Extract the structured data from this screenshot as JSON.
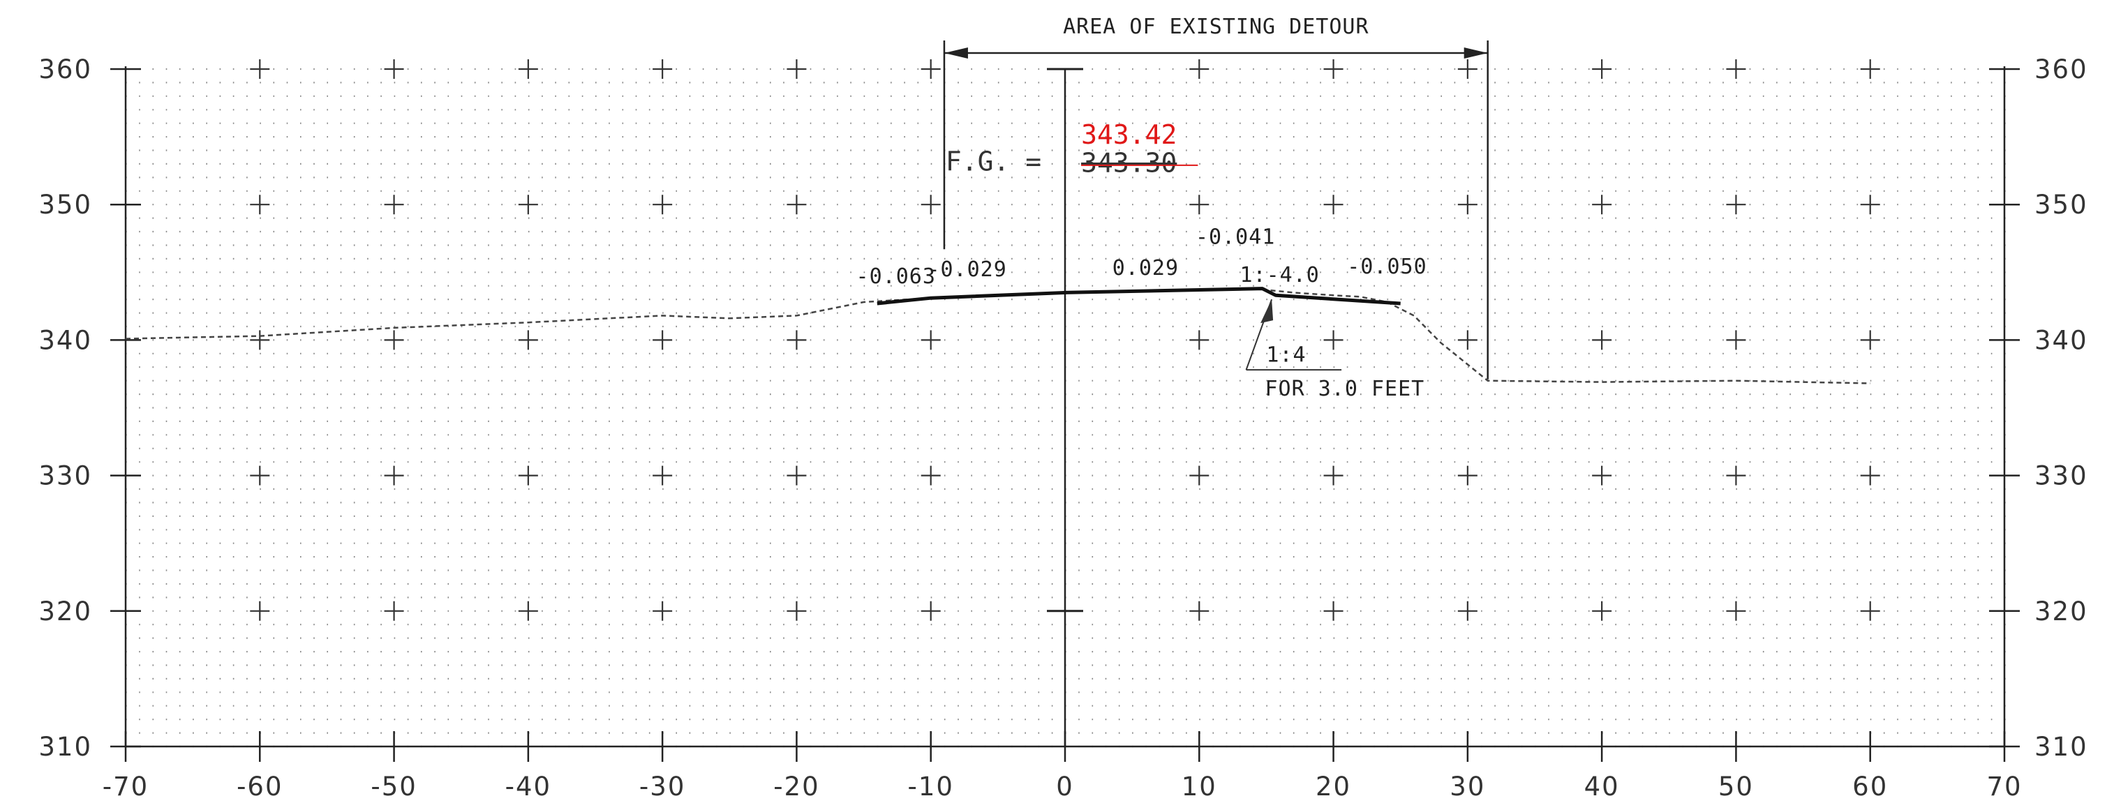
{
  "chart_data": {
    "type": "cross-section",
    "x_ticks": [
      -70,
      -60,
      -50,
      -40,
      -30,
      -20,
      -10,
      0,
      10,
      20,
      30,
      40,
      50,
      60,
      70
    ],
    "y_ticks": [
      310,
      320,
      330,
      340,
      350,
      360
    ],
    "x_labels": [
      "-70",
      "-60",
      "-50",
      "-40",
      "-30",
      "-20",
      "-10",
      "0",
      "10",
      "20",
      "30",
      "40",
      "50",
      "60",
      "70"
    ],
    "y_labels": [
      "310",
      "320",
      "330",
      "340",
      "350",
      "360"
    ],
    "xlim": [
      -70,
      70
    ],
    "ylim": [
      310,
      360
    ],
    "grid": "dotted",
    "existing_ground": [
      [
        -70,
        340.1
      ],
      [
        -60,
        340.3
      ],
      [
        -50,
        340.9
      ],
      [
        -40,
        341.3
      ],
      [
        -30,
        341.8
      ],
      [
        -25,
        341.6
      ],
      [
        -20,
        341.8
      ],
      [
        -15,
        342.8
      ],
      [
        -10,
        343.1
      ],
      [
        0,
        343.5
      ],
      [
        10,
        343.7
      ],
      [
        14,
        343.8
      ],
      [
        17,
        343.5
      ],
      [
        20,
        343.3
      ],
      [
        22,
        343.2
      ],
      [
        24,
        342.8
      ],
      [
        26,
        341.8
      ],
      [
        28,
        339.8
      ],
      [
        31.5,
        337.0
      ],
      [
        40,
        336.9
      ],
      [
        50,
        337.0
      ],
      [
        60,
        336.8
      ]
    ],
    "finished_grade": [
      [
        -14,
        342.7
      ],
      [
        -10,
        343.1
      ],
      [
        0,
        343.5
      ],
      [
        10,
        343.7
      ],
      [
        14.7,
        343.8
      ],
      [
        15.7,
        343.3
      ],
      [
        25,
        342.7
      ]
    ],
    "detour_limits": [
      -9,
      31.5
    ],
    "detour_label": "AREA OF EXISTING DETOUR",
    "fg_label": "F.G. =",
    "fg_elevation_old": "343.30",
    "fg_elevation_new": "343.42",
    "slope_labels": [
      "-0.063",
      "-0.029",
      "0.029",
      "-0.041",
      "1:-4.0",
      "-0.050"
    ],
    "taper_labels": [
      "1:4",
      "FOR 3.0 FEET"
    ]
  }
}
